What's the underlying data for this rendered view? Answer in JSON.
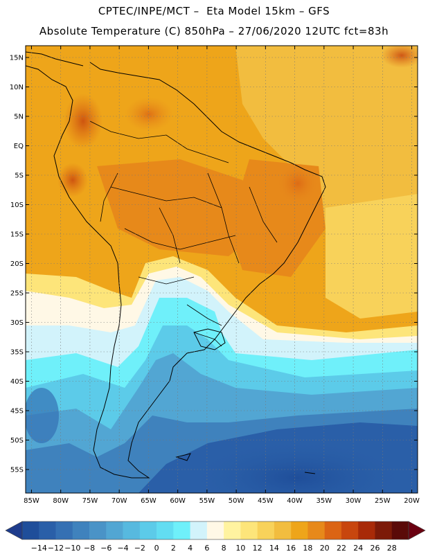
{
  "header": {
    "line1": "CPTEC/INPE/MCT –  Eta Model 15km – GFS",
    "line2": "Absolute Temperature (C) 850hPa – 27/06/2020 12UTC fct=83h"
  },
  "map": {
    "lat_labels": [
      "15N",
      "10N",
      "5N",
      "EQ",
      "5S",
      "10S",
      "15S",
      "20S",
      "25S",
      "30S",
      "35S",
      "40S",
      "45S",
      "50S",
      "55S"
    ],
    "lon_labels": [
      "85W",
      "80W",
      "75W",
      "70W",
      "65W",
      "60W",
      "55W",
      "50W",
      "45W",
      "40W",
      "35W",
      "30W",
      "25W",
      "20W"
    ],
    "lon_extent": [
      -86,
      -19
    ],
    "lat_extent": [
      17,
      -59
    ]
  },
  "colorbar": {
    "labels": [
      "-14",
      "-12",
      "-10",
      "-8",
      "-6",
      "-4",
      "-2",
      "0",
      "2",
      "4",
      "6",
      "8",
      "10",
      "12",
      "14",
      "16",
      "18",
      "20",
      "22",
      "24",
      "26",
      "28"
    ],
    "colors": [
      "#1f4e9a",
      "#2a5fa8",
      "#3570b3",
      "#3f82bd",
      "#4a93c7",
      "#52a6d3",
      "#57b9df",
      "#5ccbe9",
      "#62ddf2",
      "#6ff0fa",
      "#d2f3fb",
      "#fff8e6",
      "#fff3a0",
      "#fde57a",
      "#f8d25a",
      "#f2bd3f",
      "#eea51a",
      "#e7891a",
      "#db6414",
      "#c8460e",
      "#a82a08",
      "#7c1a08",
      "#5a0a08"
    ],
    "under_color": "#1e3c8c",
    "over_color": "#6a0010"
  }
}
